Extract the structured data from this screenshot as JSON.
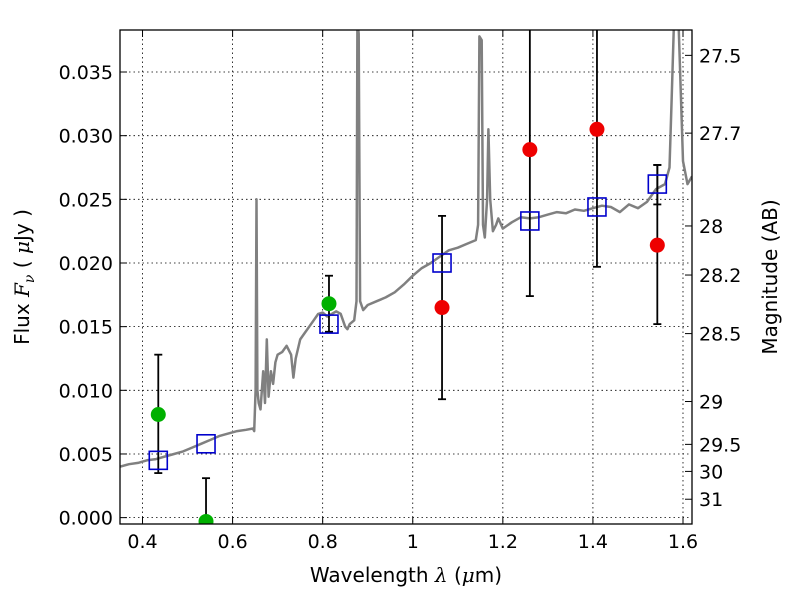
{
  "chart_data": {
    "type": "scatter",
    "grid": true,
    "xlabel": {
      "prefix": "Wavelength  ",
      "symbol": "λ",
      "unit_open": " (",
      "unit_mu": "μ",
      "unit_rest": "m)"
    },
    "ylabel": {
      "prefix": "Flux  ",
      "symbol": "F",
      "sub": "ν",
      "unit_open": "  ( ",
      "unit_mu": "μ",
      "unit_rest": "Jy )"
    },
    "y2label": "Magnitude (AB)",
    "xlim": [
      0.35,
      1.62
    ],
    "ylim": [
      -0.0005,
      0.0383
    ],
    "xticks": [
      {
        "v": 0.4,
        "label": "0.4"
      },
      {
        "v": 0.6,
        "label": "0.6"
      },
      {
        "v": 0.8,
        "label": "0.8"
      },
      {
        "v": 1.0,
        "label": "1"
      },
      {
        "v": 1.2,
        "label": "1.2"
      },
      {
        "v": 1.4,
        "label": "1.4"
      },
      {
        "v": 1.6,
        "label": "1.6"
      }
    ],
    "yticks": [
      {
        "v": 0.0,
        "label": "0.000"
      },
      {
        "v": 0.005,
        "label": "0.005"
      },
      {
        "v": 0.01,
        "label": "0.010"
      },
      {
        "v": 0.015,
        "label": "0.015"
      },
      {
        "v": 0.02,
        "label": "0.020"
      },
      {
        "v": 0.025,
        "label": "0.025"
      },
      {
        "v": 0.03,
        "label": "0.030"
      },
      {
        "v": 0.035,
        "label": "0.035"
      }
    ],
    "y2ticks": [
      {
        "mag": 27.5,
        "label": "27.5"
      },
      {
        "mag": 27.7,
        "label": "27.7"
      },
      {
        "mag": 28,
        "label": "28"
      },
      {
        "mag": 28.2,
        "label": "28.2"
      },
      {
        "mag": 28.5,
        "label": "28.5"
      },
      {
        "mag": 29,
        "label": "29"
      },
      {
        "mag": 29.5,
        "label": "29.5"
      },
      {
        "mag": 30,
        "label": "30"
      },
      {
        "mag": 31,
        "label": "31"
      }
    ],
    "series": [
      {
        "kind": "line",
        "color": "#808080",
        "points": [
          [
            0.35,
            0.004
          ],
          [
            0.37,
            0.0042
          ],
          [
            0.39,
            0.0043
          ],
          [
            0.41,
            0.0045
          ],
          [
            0.43,
            0.0046
          ],
          [
            0.45,
            0.0048
          ],
          [
            0.47,
            0.005
          ],
          [
            0.49,
            0.0052
          ],
          [
            0.51,
            0.0055
          ],
          [
            0.53,
            0.0058
          ],
          [
            0.55,
            0.0061
          ],
          [
            0.57,
            0.0064
          ],
          [
            0.59,
            0.0066
          ],
          [
            0.61,
            0.0068
          ],
          [
            0.63,
            0.0069
          ],
          [
            0.645,
            0.007
          ],
          [
            0.648,
            0.0068
          ],
          [
            0.651,
            0.01
          ],
          [
            0.653,
            0.025
          ],
          [
            0.655,
            0.01
          ],
          [
            0.658,
            0.009
          ],
          [
            0.662,
            0.0085
          ],
          [
            0.668,
            0.0115
          ],
          [
            0.672,
            0.009
          ],
          [
            0.676,
            0.014
          ],
          [
            0.68,
            0.0095
          ],
          [
            0.685,
            0.0115
          ],
          [
            0.69,
            0.0105
          ],
          [
            0.695,
            0.0122
          ],
          [
            0.7,
            0.0128
          ],
          [
            0.71,
            0.013
          ],
          [
            0.72,
            0.0135
          ],
          [
            0.73,
            0.0128
          ],
          [
            0.735,
            0.011
          ],
          [
            0.74,
            0.0125
          ],
          [
            0.75,
            0.014
          ],
          [
            0.76,
            0.0145
          ],
          [
            0.77,
            0.015
          ],
          [
            0.78,
            0.0155
          ],
          [
            0.79,
            0.016
          ],
          [
            0.8,
            0.0161
          ],
          [
            0.81,
            0.0158
          ],
          [
            0.82,
            0.016
          ],
          [
            0.83,
            0.0162
          ],
          [
            0.84,
            0.016
          ],
          [
            0.85,
            0.015
          ],
          [
            0.855,
            0.0148
          ],
          [
            0.86,
            0.0152
          ],
          [
            0.87,
            0.0155
          ],
          [
            0.875,
            0.017
          ],
          [
            0.877,
            0.039
          ],
          [
            0.88,
            0.038
          ],
          [
            0.883,
            0.017
          ],
          [
            0.89,
            0.0163
          ],
          [
            0.9,
            0.0167
          ],
          [
            0.92,
            0.017
          ],
          [
            0.94,
            0.0173
          ],
          [
            0.96,
            0.0177
          ],
          [
            0.98,
            0.0183
          ],
          [
            1.0,
            0.019
          ],
          [
            1.02,
            0.0196
          ],
          [
            1.04,
            0.02
          ],
          [
            1.06,
            0.0205
          ],
          [
            1.08,
            0.021
          ],
          [
            1.1,
            0.0212
          ],
          [
            1.12,
            0.0215
          ],
          [
            1.14,
            0.0218
          ],
          [
            1.145,
            0.023
          ],
          [
            1.148,
            0.0378
          ],
          [
            1.153,
            0.0375
          ],
          [
            1.156,
            0.023
          ],
          [
            1.16,
            0.022
          ],
          [
            1.165,
            0.025
          ],
          [
            1.168,
            0.0305
          ],
          [
            1.172,
            0.025
          ],
          [
            1.178,
            0.0225
          ],
          [
            1.185,
            0.023
          ],
          [
            1.19,
            0.0235
          ],
          [
            1.2,
            0.0227
          ],
          [
            1.22,
            0.0232
          ],
          [
            1.24,
            0.0236
          ],
          [
            1.26,
            0.0235
          ],
          [
            1.28,
            0.0236
          ],
          [
            1.3,
            0.0238
          ],
          [
            1.32,
            0.024
          ],
          [
            1.34,
            0.0239
          ],
          [
            1.36,
            0.0242
          ],
          [
            1.38,
            0.0241
          ],
          [
            1.4,
            0.0243
          ],
          [
            1.42,
            0.0245
          ],
          [
            1.44,
            0.0244
          ],
          [
            1.46,
            0.024
          ],
          [
            1.48,
            0.0246
          ],
          [
            1.5,
            0.0243
          ],
          [
            1.52,
            0.0248
          ],
          [
            1.54,
            0.0258
          ],
          [
            1.56,
            0.0262
          ],
          [
            1.57,
            0.0275
          ],
          [
            1.575,
            0.033
          ],
          [
            1.58,
            0.039
          ],
          [
            1.59,
            0.039
          ],
          [
            1.6,
            0.028
          ],
          [
            1.61,
            0.0262
          ],
          [
            1.62,
            0.0268
          ]
        ]
      },
      {
        "kind": "open-square",
        "color": "#0000cc",
        "points": [
          [
            0.435,
            0.0045
          ],
          [
            0.541,
            0.0058
          ],
          [
            0.814,
            0.0152
          ],
          [
            1.065,
            0.02
          ],
          [
            1.26,
            0.0233
          ],
          [
            1.409,
            0.0244
          ],
          [
            1.543,
            0.0262
          ]
        ]
      },
      {
        "kind": "filled-circle",
        "color": "#00b000",
        "points": [
          [
            0.435,
            0.0081,
            0.0035,
            0.0128
          ],
          [
            0.541,
            -0.0003,
            -0.001,
            0.0031
          ],
          [
            0.814,
            0.0168,
            0.0146,
            0.019
          ]
        ]
      },
      {
        "kind": "filled-circle",
        "color": "#ee0000",
        "points": [
          [
            1.065,
            0.0165,
            0.0093,
            0.0237
          ],
          [
            1.26,
            0.0289,
            0.0174,
            0.04
          ],
          [
            1.409,
            0.0305,
            0.0197,
            0.04
          ],
          [
            1.543,
            0.0214,
            0.0152,
            0.0277
          ]
        ]
      }
    ],
    "extra_errorbars": [
      {
        "x": 1.543,
        "lo": 0.0246,
        "hi": 0.0277
      }
    ]
  }
}
